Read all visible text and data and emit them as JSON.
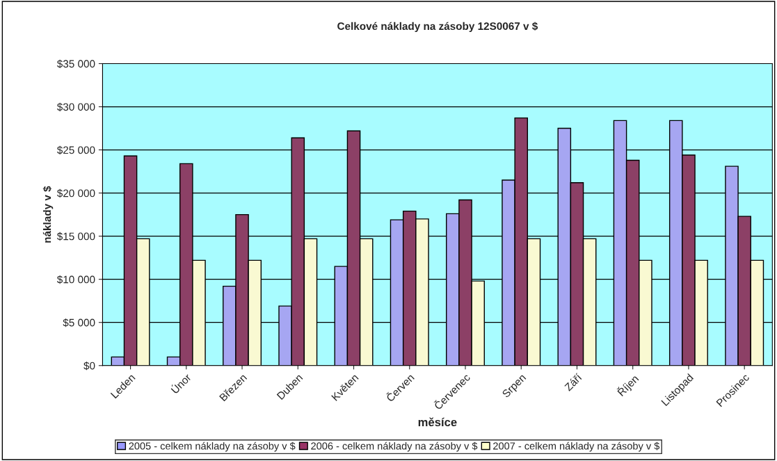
{
  "chart_data": {
    "type": "bar",
    "title": "Celkové náklady na zásoby 12S0067 v $",
    "xlabel": "měsíce",
    "ylabel": "náklady v $",
    "categories": [
      "Leden",
      "Únor",
      "Březen",
      "Duben",
      "Květen",
      "Červen",
      "Červenec",
      "Srpen",
      "Září",
      "Říjen",
      "Listopad",
      "Prosinec"
    ],
    "series": [
      {
        "name": "2005 - celkem náklady na zásoby v $",
        "color": "#9999ff",
        "values": [
          1000,
          1000,
          9200,
          6900,
          11500,
          16900,
          17600,
          21500,
          27500,
          28400,
          28400,
          23100
        ]
      },
      {
        "name": "2006 - celkem náklady na zásoby v $",
        "color": "#993366",
        "values": [
          24300,
          23400,
          17500,
          26400,
          27200,
          17900,
          19200,
          28700,
          21200,
          23800,
          24400,
          17300
        ]
      },
      {
        "name": "2007 - celkem náklady na zásoby v $",
        "color": "#ffffcc",
        "values": [
          14700,
          12200,
          12200,
          14700,
          14700,
          17000,
          9800,
          14700,
          14700,
          12200,
          12200,
          12200
        ]
      }
    ],
    "ylim": [
      0,
      35000
    ],
    "yticks": [
      {
        "value": 0,
        "label": "$0"
      },
      {
        "value": 5000,
        "label": "$5 000"
      },
      {
        "value": 10000,
        "label": "$10 000"
      },
      {
        "value": 15000,
        "label": "$15 000"
      },
      {
        "value": 20000,
        "label": "$20 000"
      },
      {
        "value": 25000,
        "label": "$25 000"
      },
      {
        "value": 30000,
        "label": "$30 000"
      },
      {
        "value": 35000,
        "label": "$35 000"
      }
    ],
    "grid": "y",
    "legend": "bottom"
  }
}
